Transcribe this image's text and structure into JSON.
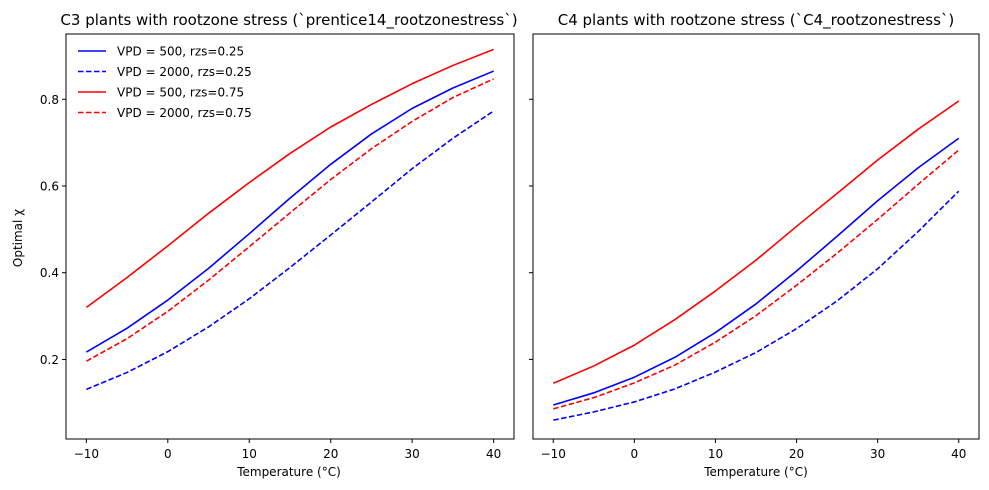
{
  "chart_data": [
    {
      "type": "line",
      "title": "C3 plants with rootzone stress (`prentice14_rootzonestress`)",
      "xlabel": "Temperature (°C)",
      "ylabel": "Optimal χ",
      "xlim": [
        -12.5,
        42.5
      ],
      "ylim": [
        0.0165,
        0.9505
      ],
      "xticks": [
        -10,
        0,
        10,
        20,
        30,
        40
      ],
      "yticks": [
        0.2,
        0.4,
        0.6,
        0.8
      ],
      "ytick_labels": [
        "0.2",
        "0.4",
        "0.6",
        "0.8"
      ],
      "grid": false,
      "legend_position": "top-left",
      "x": [
        -10,
        -5,
        0,
        5,
        10,
        15,
        20,
        25,
        30,
        35,
        40
      ],
      "series": [
        {
          "name": "VPD = 500, rzs=0.25",
          "color": "#0000ff",
          "dash": "solid",
          "values": [
            0.217,
            0.272,
            0.337,
            0.41,
            0.49,
            0.572,
            0.65,
            0.72,
            0.779,
            0.826,
            0.865
          ]
        },
        {
          "name": "VPD = 2000, rzs=0.25",
          "color": "#0000ff",
          "dash": "dashed",
          "values": [
            0.131,
            0.17,
            0.218,
            0.275,
            0.34,
            0.412,
            0.487,
            0.563,
            0.64,
            0.71,
            0.773
          ]
        },
        {
          "name": "VPD = 500, rzs=0.75",
          "color": "#ff0000",
          "dash": "solid",
          "values": [
            0.32,
            0.389,
            0.462,
            0.537,
            0.608,
            0.675,
            0.736,
            0.788,
            0.836,
            0.878,
            0.915
          ]
        },
        {
          "name": "VPD = 2000, rzs=0.75",
          "color": "#ff0000",
          "dash": "dashed",
          "values": [
            0.196,
            0.248,
            0.311,
            0.383,
            0.46,
            0.538,
            0.615,
            0.686,
            0.749,
            0.804,
            0.847
          ]
        }
      ]
    },
    {
      "type": "line",
      "title": "C4 plants with rootzone stress (`C4_rootzonestress`)",
      "xlabel": "Temperature (°C)",
      "ylabel": "",
      "xlim": [
        -12.5,
        42.5
      ],
      "ylim": [
        0.0165,
        0.9505
      ],
      "xticks": [
        -10,
        0,
        10,
        20,
        30,
        40
      ],
      "yticks": [
        0.2,
        0.4,
        0.6,
        0.8
      ],
      "grid": false,
      "x": [
        -10,
        -5,
        0,
        5,
        10,
        15,
        20,
        25,
        30,
        35,
        40
      ],
      "series": [
        {
          "name": "VPD = 500, rzs=0.25",
          "color": "#0000ff",
          "dash": "solid",
          "values": [
            0.095,
            0.123,
            0.159,
            0.205,
            0.262,
            0.328,
            0.404,
            0.484,
            0.566,
            0.642,
            0.71
          ]
        },
        {
          "name": "VPD = 2000, rzs=0.25",
          "color": "#0000ff",
          "dash": "dashed",
          "values": [
            0.06,
            0.079,
            0.102,
            0.132,
            0.171,
            0.216,
            0.271,
            0.335,
            0.409,
            0.495,
            0.588
          ]
        },
        {
          "name": "VPD = 500, rzs=0.75",
          "color": "#ff0000",
          "dash": "solid",
          "values": [
            0.145,
            0.185,
            0.233,
            0.292,
            0.358,
            0.429,
            0.507,
            0.583,
            0.66,
            0.731,
            0.796
          ]
        },
        {
          "name": "VPD = 2000, rzs=0.75",
          "color": "#ff0000",
          "dash": "dashed",
          "values": [
            0.086,
            0.112,
            0.146,
            0.187,
            0.24,
            0.301,
            0.371,
            0.445,
            0.523,
            0.604,
            0.683
          ]
        }
      ]
    }
  ]
}
